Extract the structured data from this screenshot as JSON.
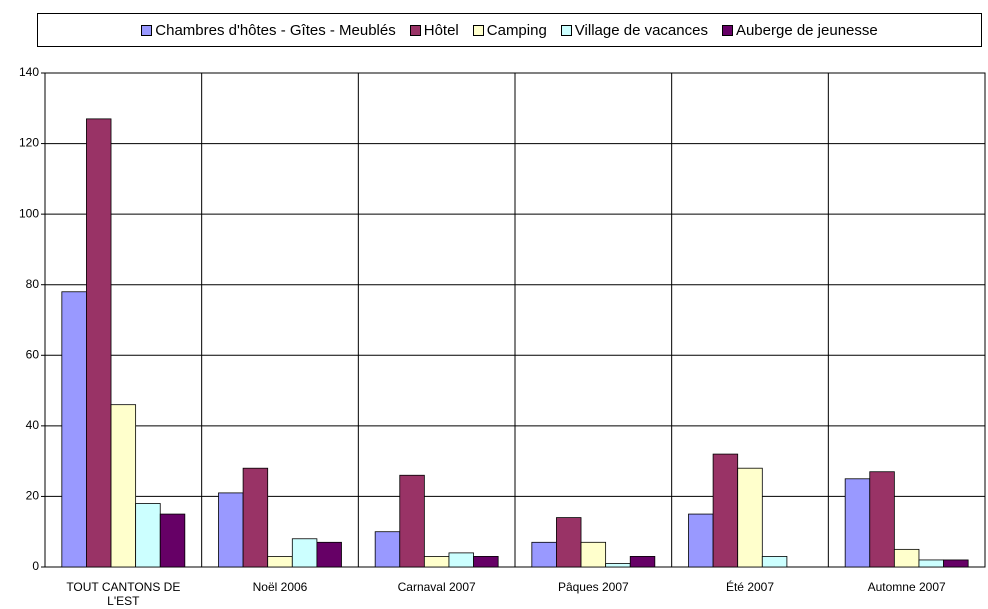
{
  "chart_data": {
    "type": "bar",
    "categories": [
      "TOUT CANTONS DE L'EST",
      "Noël 2006",
      "Carnaval 2007",
      "Pâques 2007",
      "Été 2007",
      "Automne 2007"
    ],
    "series": [
      {
        "name": "Chambres d'hôtes - Gîtes - Meublés",
        "color": "#9999ff",
        "values": [
          78,
          21,
          10,
          7,
          15,
          25
        ]
      },
      {
        "name": "Hôtel",
        "color": "#993366",
        "values": [
          127,
          28,
          26,
          14,
          32,
          27
        ]
      },
      {
        "name": "Camping",
        "color": "#ffffcc",
        "values": [
          46,
          3,
          3,
          7,
          28,
          5
        ]
      },
      {
        "name": "Village de vacances",
        "color": "#ccffff",
        "values": [
          18,
          8,
          4,
          1,
          3,
          2
        ]
      },
      {
        "name": "Auberge de jeunesse",
        "color": "#660066",
        "values": [
          15,
          7,
          3,
          3,
          0,
          2
        ]
      }
    ],
    "ylim": [
      0,
      140
    ],
    "yticks": [
      0,
      20,
      40,
      60,
      80,
      100,
      120,
      140
    ],
    "grid": true,
    "legend": "top"
  }
}
